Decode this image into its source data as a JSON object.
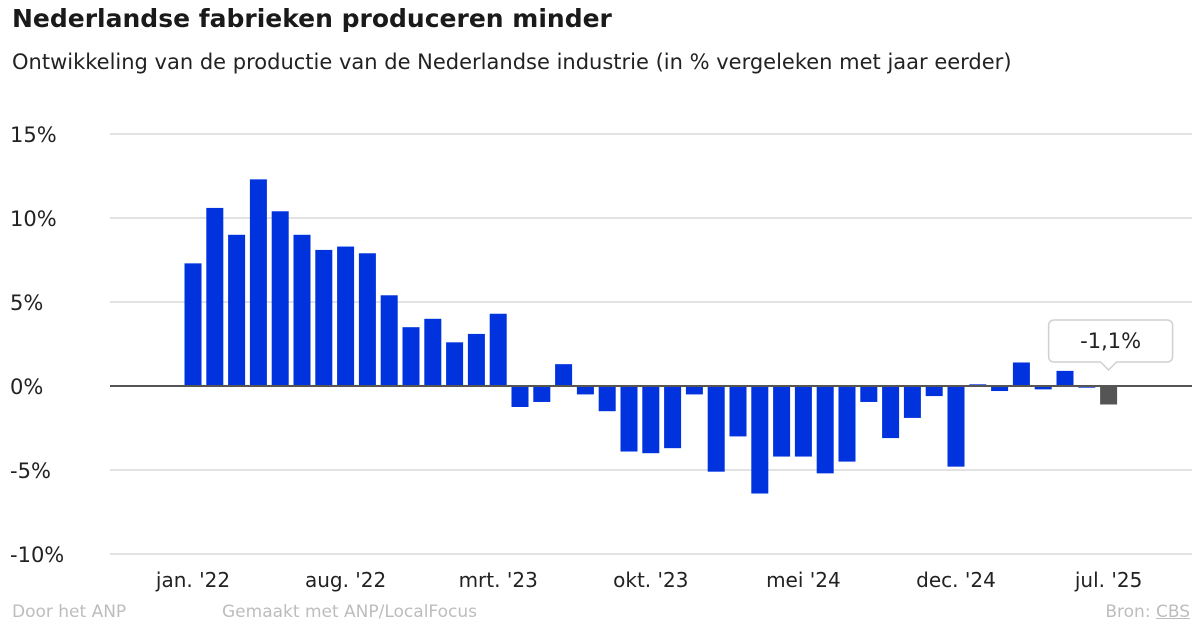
{
  "title": "Nederlandse fabrieken produceren minder",
  "subtitle": "Ontwikkeling van de productie van de Nederlandse industrie (in % vergeleken met jaar eerder)",
  "footer": {
    "author": "Door het ANP",
    "made_with": "Gemaakt met ANP/LocalFocus",
    "source_label": "Bron:",
    "source": "CBS"
  },
  "chart_data": {
    "type": "bar",
    "ylim": [
      -10,
      15
    ],
    "yticks": [
      15,
      10,
      5,
      0,
      -5,
      -10
    ],
    "ytick_labels": [
      "15%",
      "10%",
      "5%",
      "0%",
      "-5%",
      "-10%"
    ],
    "xtick_labels": [
      "jan. '22",
      "aug. '22",
      "mrt. '23",
      "okt. '23",
      "mei '24",
      "dec. '24",
      "jul. '25"
    ],
    "grid": true,
    "colors": {
      "bar": "#0033dd",
      "highlight": "#555555",
      "zero_line": "#555555",
      "grid": "#d9d9d9"
    },
    "start_month": "jan. '22",
    "values": [
      7.3,
      10.6,
      9.0,
      12.3,
      10.4,
      9.0,
      8.1,
      8.3,
      7.9,
      5.4,
      3.5,
      4.0,
      2.6,
      3.1,
      4.3,
      -1.25,
      -0.95,
      1.3,
      -0.5,
      -1.5,
      -3.9,
      -4.0,
      -3.7,
      -0.5,
      -5.1,
      -3.0,
      -6.4,
      -4.2,
      -4.2,
      -5.2,
      -4.5,
      -0.95,
      -3.1,
      -1.9,
      -0.6,
      -4.8,
      0.1,
      -0.3,
      1.4,
      -0.2,
      0.9,
      -0.1,
      -1.1
    ],
    "annotation": {
      "label": "-1,1%",
      "month": "jul. '25"
    }
  }
}
